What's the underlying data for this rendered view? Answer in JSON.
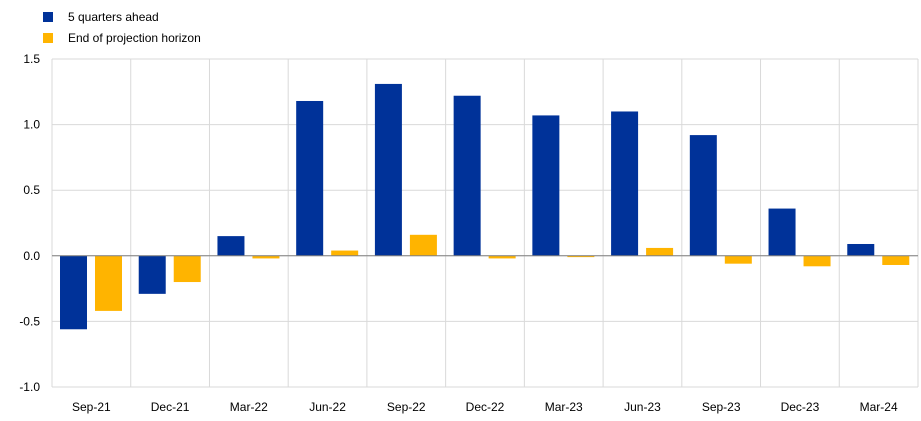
{
  "chart_data": {
    "type": "bar",
    "categories": [
      "Sep-21",
      "Dec-21",
      "Mar-22",
      "Jun-22",
      "Sep-22",
      "Dec-22",
      "Mar-23",
      "Jun-23",
      "Sep-23",
      "Dec-23",
      "Mar-24"
    ],
    "series": [
      {
        "name": "5 quarters ahead",
        "color": "#003299",
        "values": [
          -0.56,
          -0.29,
          0.15,
          1.18,
          1.31,
          1.22,
          1.07,
          1.1,
          0.92,
          0.36,
          0.09
        ]
      },
      {
        "name": "End of projection horizon",
        "color": "#FFB400",
        "values": [
          -0.42,
          -0.2,
          -0.02,
          0.04,
          0.16,
          -0.02,
          -0.01,
          0.06,
          -0.06,
          -0.08,
          -0.07
        ]
      }
    ],
    "yticks": [
      "1.5",
      "1.0",
      "0.5",
      "0.0",
      "-0.5",
      "-1.0"
    ],
    "ylim": [
      -1.0,
      1.5
    ],
    "grid": true,
    "legend_position": "top-left",
    "title": "",
    "xlabel": "",
    "ylabel": ""
  }
}
